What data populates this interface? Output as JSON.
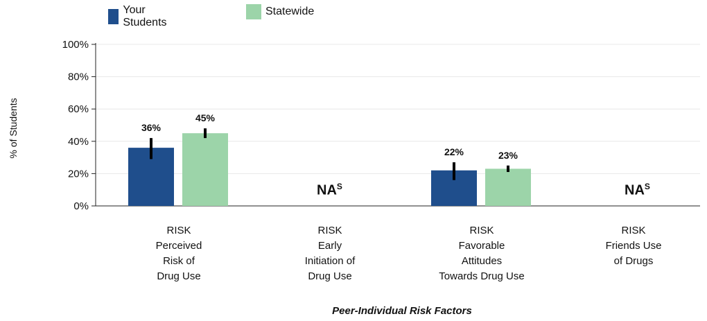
{
  "chart_data": {
    "type": "bar",
    "categories": [
      "RISK\nPerceived\nRisk of\nDrug Use",
      "RISK\nEarly\nInitiation of\nDrug Use",
      "RISK\nFavorable\nAttitudes\nTowards Drug Use",
      "RISK\nFriends Use\nof Drugs"
    ],
    "series": [
      {
        "name": "Your Students",
        "color": "#1f4e8c",
        "values": [
          36,
          null,
          22,
          null
        ],
        "error": [
          [
            29,
            42
          ],
          null,
          [
            16,
            27
          ],
          null
        ],
        "labels": [
          "36%",
          "",
          "22%",
          ""
        ]
      },
      {
        "name": "Statewide",
        "color": "#9cd4a9",
        "values": [
          45,
          null,
          23,
          null
        ],
        "error": [
          [
            42,
            48
          ],
          null,
          [
            21,
            25
          ],
          null
        ],
        "labels": [
          "45%",
          "",
          "23%",
          ""
        ]
      }
    ],
    "na_labels": [
      "",
      "NA",
      "",
      "NA"
    ],
    "na_superscript": "S",
    "ylabel": "% of Students",
    "xlabel": "Peer-Individual Risk Factors",
    "ylim": [
      0,
      100
    ],
    "yticks": [
      "0%",
      "20%",
      "40%",
      "60%",
      "80%",
      "100%"
    ],
    "grid": true,
    "legend_position": "top-left"
  }
}
